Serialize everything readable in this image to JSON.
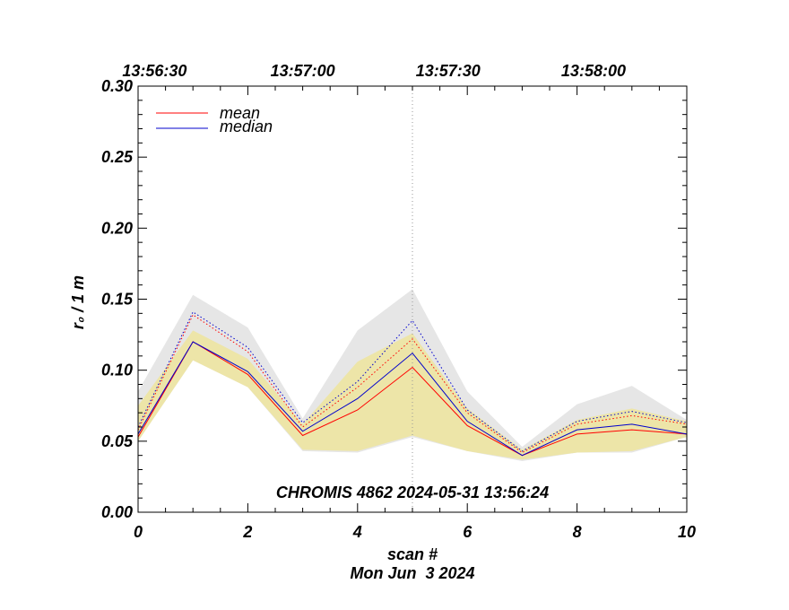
{
  "chart_data": {
    "type": "line",
    "title": "CHROMIS 4862 2024-05-31 13:56:24",
    "xlabel": "scan #",
    "ylabel": "r₀ / 1 m",
    "date_label": "Mon Jun  3 2024",
    "xlim": [
      0,
      10
    ],
    "ylim": [
      0,
      0.3
    ],
    "x_ticks": [
      "0",
      "2",
      "4",
      "6",
      "8",
      "10"
    ],
    "y_ticks": [
      "0.00",
      "0.05",
      "0.10",
      "0.15",
      "0.20",
      "0.25",
      "0.30"
    ],
    "top_ticks": [
      {
        "x": 0.3,
        "label": "13:56:30"
      },
      {
        "x": 3.0,
        "label": "13:57:00"
      },
      {
        "x": 5.65,
        "label": "13:57:30"
      },
      {
        "x": 8.3,
        "label": "13:58:00"
      }
    ],
    "marker_x": 5,
    "x": [
      0,
      1,
      2,
      3,
      4,
      5,
      6,
      7,
      8,
      9,
      10
    ],
    "series": [
      {
        "name": "mean",
        "color": "#ff0000",
        "style": "solid",
        "values": [
          0.053,
          0.12,
          0.097,
          0.054,
          0.072,
          0.102,
          0.061,
          0.04,
          0.055,
          0.058,
          0.055
        ]
      },
      {
        "name": "median",
        "color": "#0000cc",
        "style": "solid",
        "values": [
          0.055,
          0.12,
          0.099,
          0.057,
          0.08,
          0.112,
          0.064,
          0.04,
          0.058,
          0.062,
          0.055
        ]
      },
      {
        "color": "#ff0000",
        "style": "dotted",
        "values": [
          0.058,
          0.139,
          0.113,
          0.06,
          0.088,
          0.122,
          0.07,
          0.042,
          0.062,
          0.068,
          0.062
        ]
      },
      {
        "color": "#0000cc",
        "style": "dotted",
        "values": [
          0.06,
          0.141,
          0.116,
          0.063,
          0.092,
          0.135,
          0.072,
          0.043,
          0.064,
          0.071,
          0.063
        ]
      }
    ],
    "bands": [
      {
        "color": "#e6e6e6",
        "upper": [
          0.085,
          0.153,
          0.13,
          0.066,
          0.128,
          0.157,
          0.085,
          0.046,
          0.076,
          0.089,
          0.065
        ],
        "lower": [
          0.05,
          0.107,
          0.088,
          0.043,
          0.042,
          0.053,
          0.043,
          0.036,
          0.042,
          0.042,
          0.053
        ]
      },
      {
        "color": "#ede5a8",
        "upper": [
          0.075,
          0.128,
          0.108,
          0.062,
          0.106,
          0.126,
          0.073,
          0.044,
          0.065,
          0.073,
          0.064
        ],
        "lower": [
          0.05,
          0.107,
          0.088,
          0.044,
          0.043,
          0.054,
          0.043,
          0.037,
          0.042,
          0.043,
          0.053
        ]
      }
    ],
    "legend": [
      "mean",
      "median"
    ],
    "legend_position": "top-left",
    "grid": false
  }
}
